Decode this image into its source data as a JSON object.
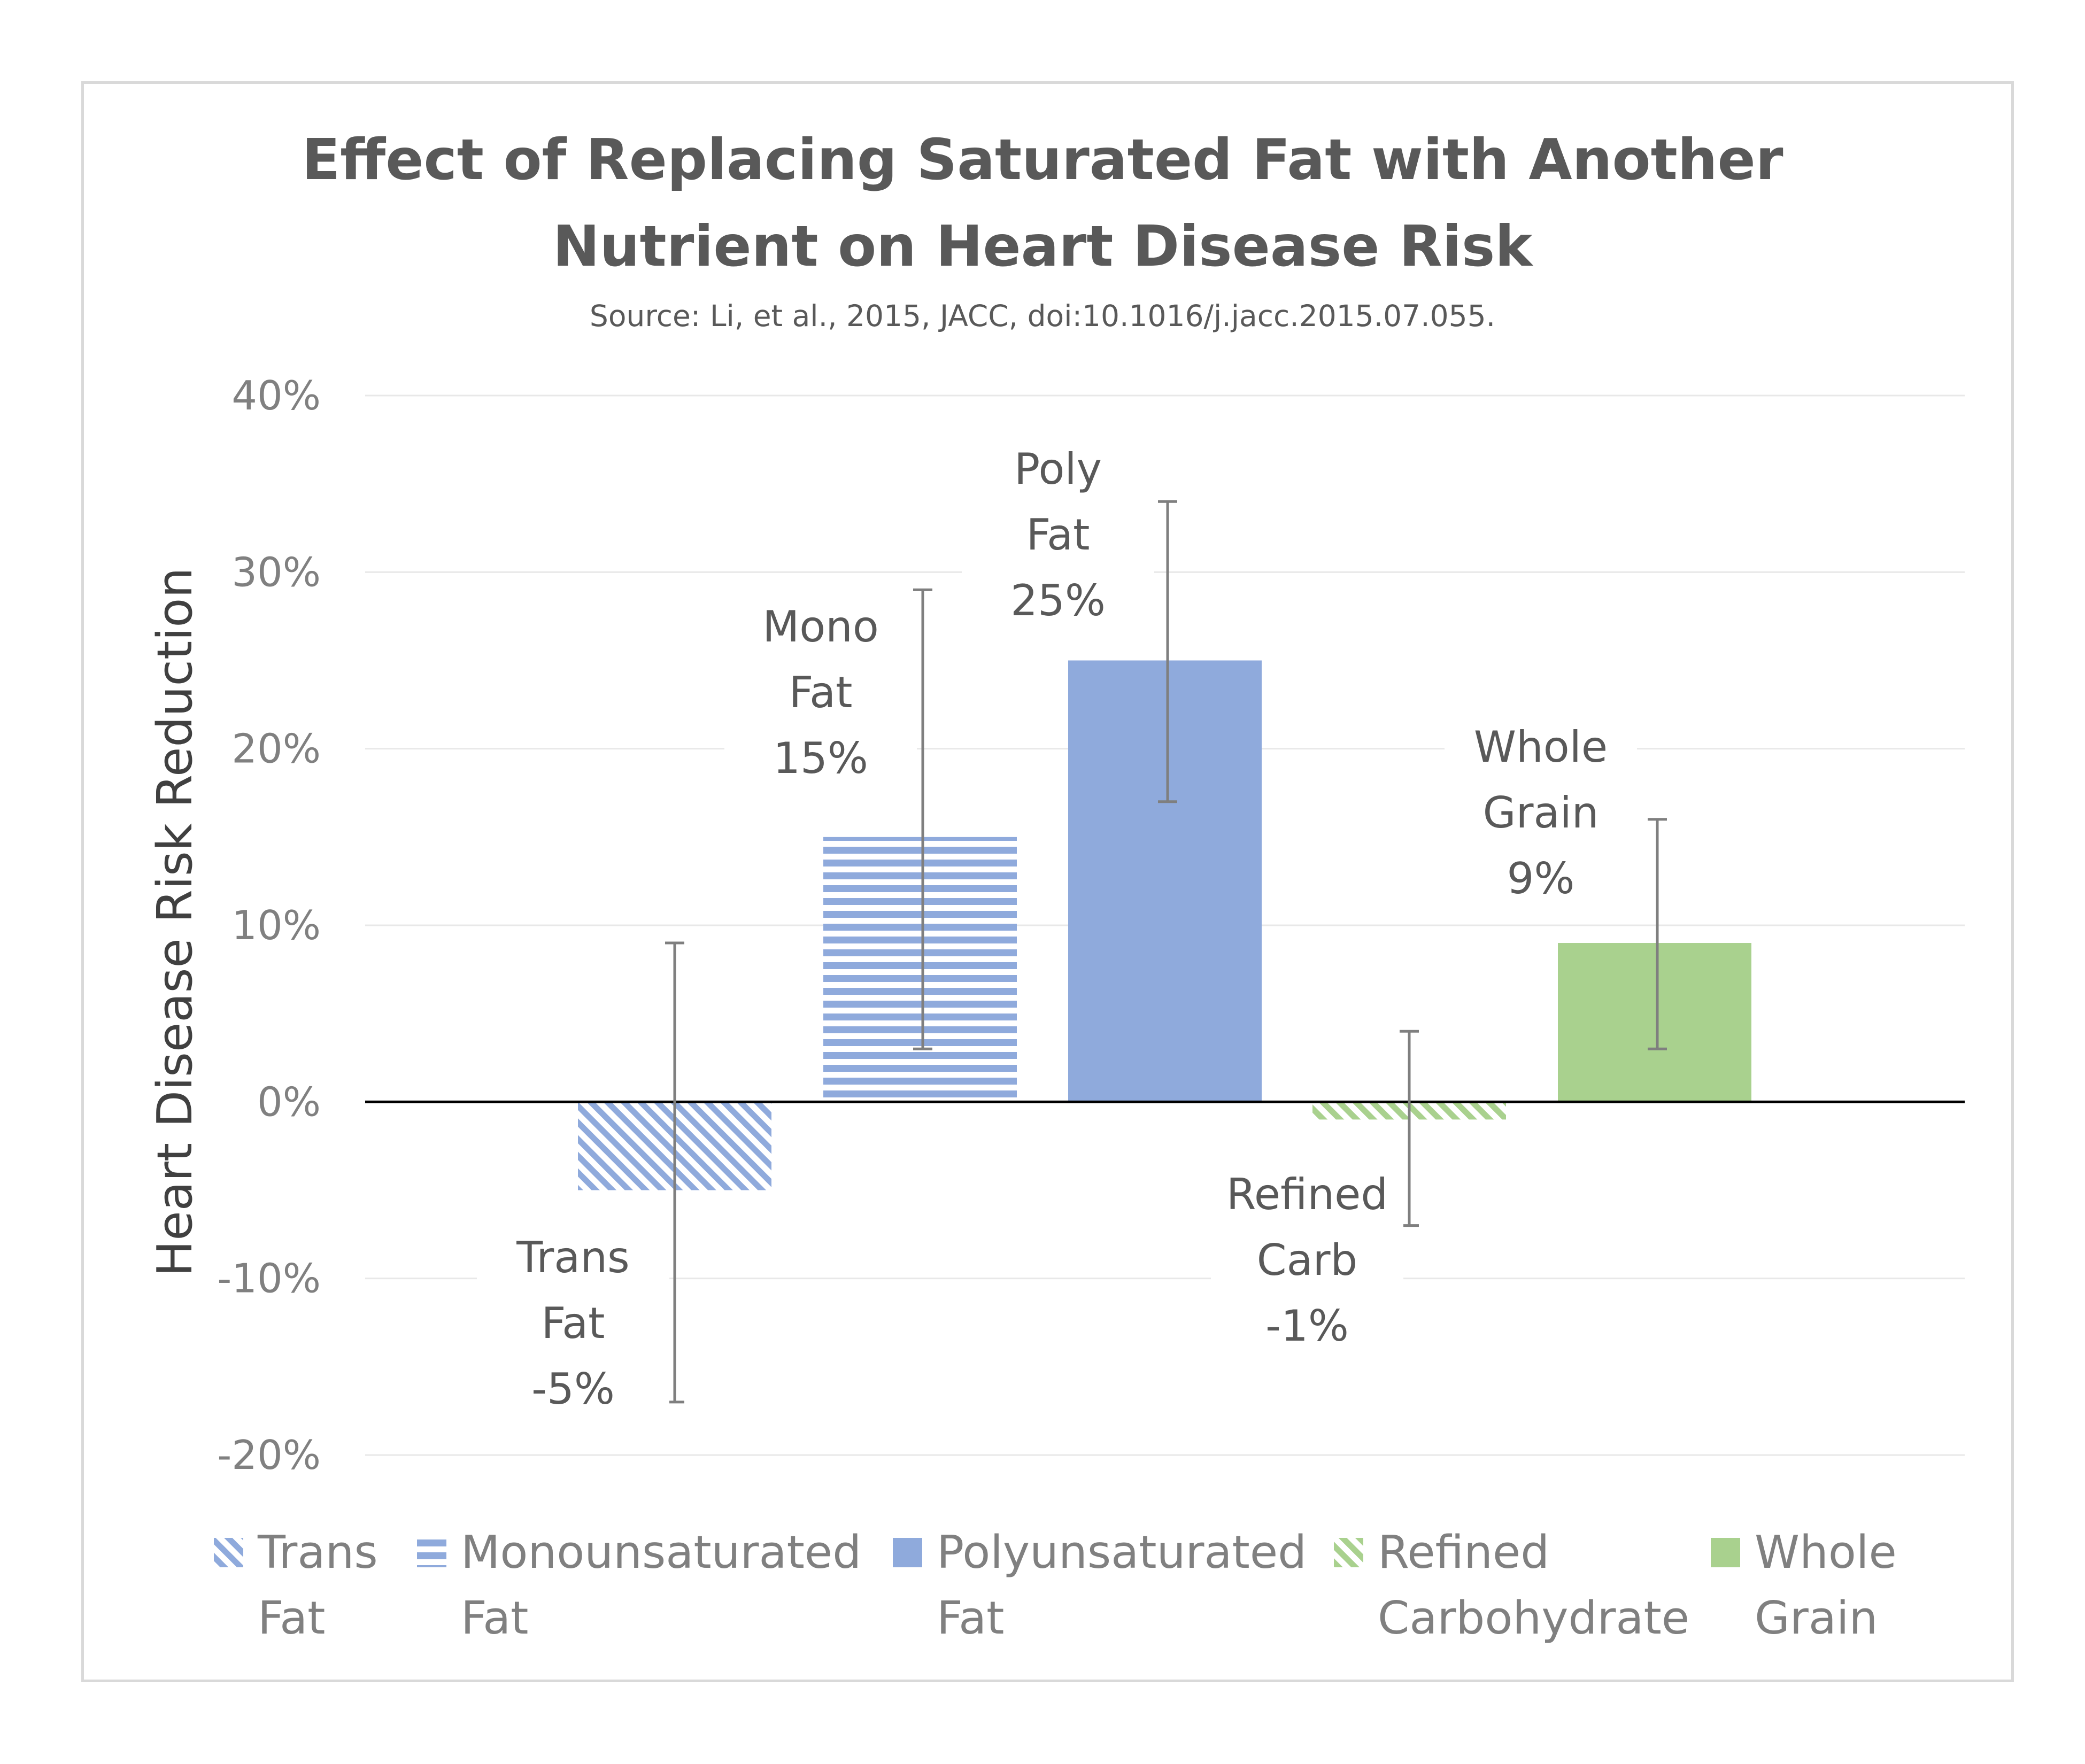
{
  "chart_data": {
    "type": "bar",
    "title_lines": [
      "Effect of Replacing Saturated Fat with Another",
      "Nutrient on Heart Disease Risk"
    ],
    "subtitle": "Source: Li, et al., 2015, JACC, doi:10.1016/j.jacc.2015.07.055.",
    "ylabel": "Heart Disease Risk Reduction",
    "xlabel": "",
    "ylim": [
      -20,
      40
    ],
    "yticks": [
      40,
      30,
      20,
      10,
      0,
      -10,
      -20
    ],
    "ytick_labels": [
      "40%",
      "30%",
      "20%",
      "10%",
      "0%",
      "-10%",
      "-20%"
    ],
    "grid": true,
    "legend_position": "bottom",
    "series": [
      {
        "name": "Trans Fat",
        "legend_lines": [
          "Trans",
          "Fat"
        ],
        "value": -5,
        "error_low": -17,
        "error_high": 9,
        "color": "#8faadc",
        "pattern": "diagonal-stripes",
        "label_lines": [
          "Trans",
          "Fat",
          "-5%"
        ]
      },
      {
        "name": "Monounsaturated Fat",
        "legend_lines": [
          "Monounsaturated",
          "Fat"
        ],
        "value": 15,
        "error_low": 3,
        "error_high": 29,
        "color": "#8faadc",
        "pattern": "horizontal-stripes",
        "label_lines": [
          "Mono",
          "Fat",
          "15%"
        ]
      },
      {
        "name": "Polyunsaturated Fat",
        "legend_lines": [
          "Polyunsaturated",
          "Fat"
        ],
        "value": 25,
        "error_low": 17,
        "error_high": 34,
        "color": "#8faadc",
        "pattern": "solid",
        "label_lines": [
          "Poly",
          "Fat",
          "25%"
        ]
      },
      {
        "name": "Refined Carbohydrate",
        "legend_lines": [
          "Refined",
          "Carbohydrate"
        ],
        "value": -1,
        "error_low": -7,
        "error_high": 4,
        "color": "#a9d18e",
        "pattern": "diagonal-stripes",
        "label_lines": [
          "Refined",
          "Carb",
          "-1%"
        ]
      },
      {
        "name": "Whole Grain",
        "legend_lines": [
          "Whole",
          "Grain"
        ],
        "value": 9,
        "error_low": 3,
        "error_high": 16,
        "color": "#a9d18e",
        "pattern": "solid",
        "label_lines": [
          "Whole",
          "Grain",
          "9%"
        ]
      }
    ]
  }
}
